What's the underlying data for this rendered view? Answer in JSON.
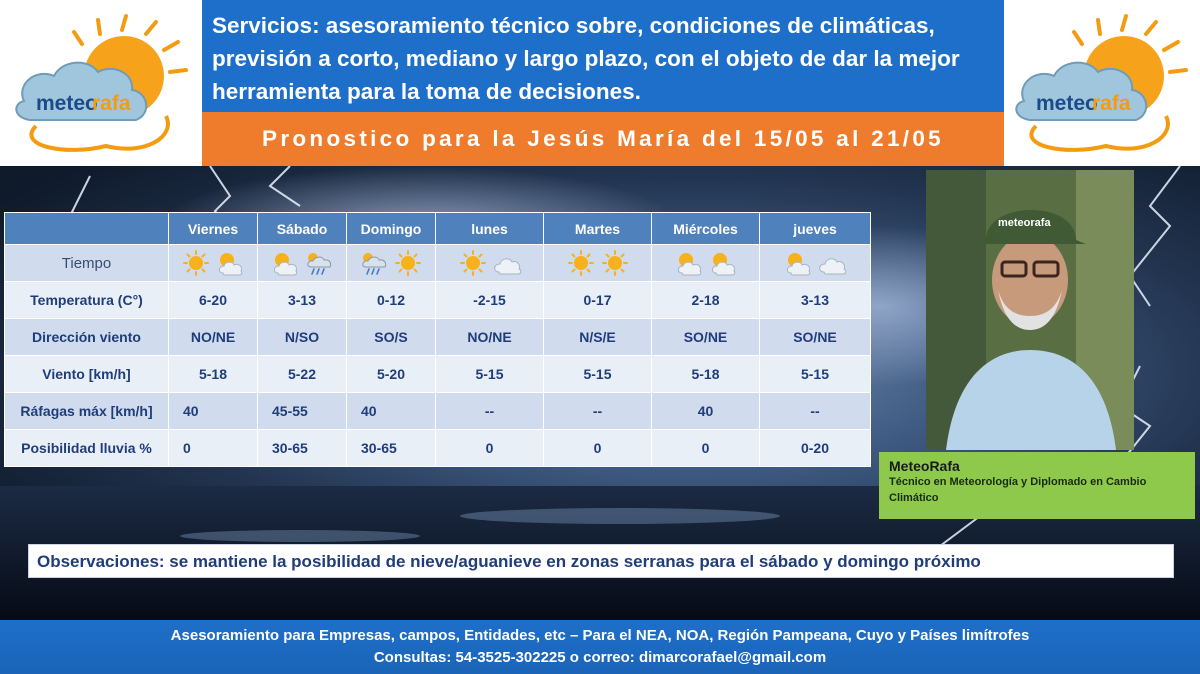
{
  "header": {
    "services_text": "Servicios: asesoramiento técnico sobre, condiciones de climáticas, previsión a corto, mediano y largo plazo, con el objeto de dar la mejor herramienta para la toma de decisiones.",
    "forecast_title": "Pronostico para la Jesús María del 15/05 al 21/05",
    "logo_text_left": "meteo",
    "logo_text_right": "rafa"
  },
  "table": {
    "days": [
      "Viernes",
      "Sábado",
      "Domingo",
      "lunes",
      "Martes",
      "Miércoles",
      "jueves"
    ],
    "weather_label": "Tiempo",
    "weather_icons": [
      [
        "sun-icon",
        "partly-cloudy-icon"
      ],
      [
        "partly-cloudy-icon",
        "rain-icon"
      ],
      [
        "rain-icon",
        "sun-icon"
      ],
      [
        "sun-icon",
        "cloud-icon"
      ],
      [
        "sun-icon",
        "sun-icon"
      ],
      [
        "partly-cloudy-icon",
        "partly-cloudy-icon"
      ],
      [
        "partly-cloudy-icon",
        "cloud-icon"
      ]
    ],
    "rows": [
      {
        "label": "Temperatura (C°)",
        "values": [
          "6-20",
          "3-13",
          "0-12",
          "-2-15",
          "0-17",
          "2-18",
          "3-13"
        ]
      },
      {
        "label": "Dirección viento",
        "values": [
          "NO/NE",
          "N/SO",
          "SO/S",
          "NO/NE",
          "N/S/E",
          "SO/NE",
          "SO/NE"
        ]
      },
      {
        "label": "Viento  [km/h]",
        "values": [
          "5-18",
          "5-22",
          "5-20",
          "5-15",
          "5-15",
          "5-18",
          "5-15"
        ]
      },
      {
        "label": "Ráfagas máx [km/h]",
        "values": [
          "40",
          "45-55",
          "40",
          "--",
          "--",
          "40",
          "--"
        ]
      },
      {
        "label": "Posibilidad lluvia %",
        "values": [
          "0",
          "30-65",
          "30-65",
          "0",
          "0",
          "0",
          "0-20"
        ]
      }
    ]
  },
  "profile": {
    "cap_text": "meteorafa",
    "name": "MeteoRafa",
    "description": "Técnico en Meteorología y Diplomado en Cambio Climático"
  },
  "observations": "Observaciones: se mantiene la posibilidad de nieve/aguanieve en zonas serranas para el sábado y domingo próximo",
  "footer": {
    "line1": "Asesoramiento para Empresas, campos, Entidades, etc – Para el  NEA, NOA, Región Pampeana, Cuyo y Países limítrofes",
    "line2": "Consultas: 54-3525-302225 o correo: dimarcorafael@gmail.com"
  },
  "colors": {
    "header_blue": "#1e6fc9",
    "title_orange": "#ef7c2c",
    "table_header": "#4f81bd",
    "caption_green": "#8ec94b",
    "text_navy": "#1f3d7a"
  }
}
